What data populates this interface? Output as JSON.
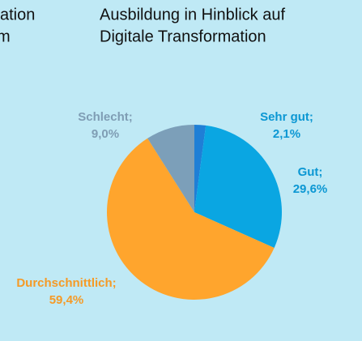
{
  "chart_data": {
    "type": "pie",
    "title": [
      "Ausbildung in Hinblick auf",
      "Digitale Transformation"
    ],
    "annotations": [
      "ation",
      "m"
    ],
    "categories": [
      "Sehr gut;",
      "Gut;",
      "Durchschnittlich;",
      "Schlecht;"
    ],
    "values": [
      2.1,
      29.6,
      59.4,
      9.0
    ],
    "value_labels": [
      "2,1%",
      "29,6%",
      "59,4%",
      "9,0%"
    ],
    "colors": [
      "#1f7fd6",
      "#0aa6e2",
      "#ffa52d",
      "#7c9fb9"
    ],
    "label_colors": [
      "#0b97d3",
      "#0b97d3",
      "#f59a26",
      "#7f9db4"
    ]
  }
}
